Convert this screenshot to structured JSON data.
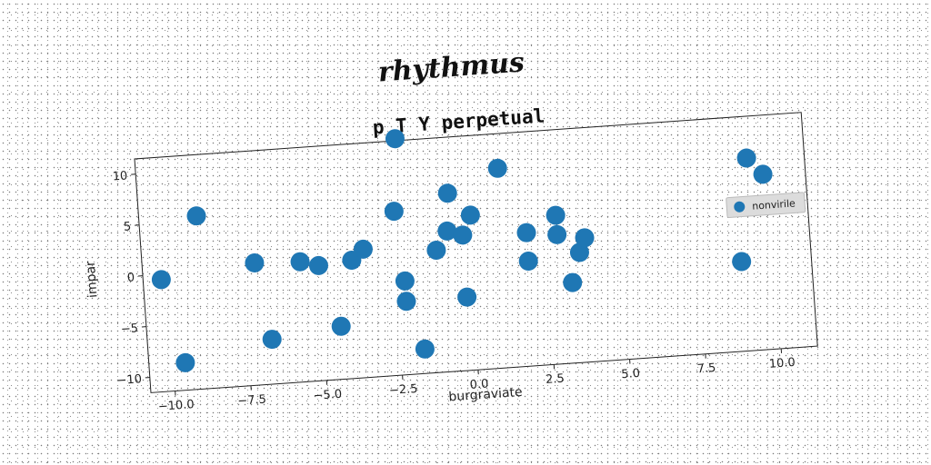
{
  "chart_data": {
    "type": "scatter",
    "suptitle": "rhythmus",
    "title": "p T Y perpetual",
    "xlabel": "burgraviate",
    "ylabel": "impar",
    "xlim": [
      -10.8,
      11.2
    ],
    "ylim": [
      -11.5,
      11.5
    ],
    "xticks": [
      -10.0,
      -7.5,
      -5.0,
      -2.5,
      0.0,
      2.5,
      5.0,
      7.5,
      10.0
    ],
    "yticks": [
      -10,
      -5,
      0,
      5,
      10
    ],
    "grid": false,
    "legend_position": "right",
    "series": [
      {
        "name": "nonvirile",
        "color": "#1f77b4",
        "x": [
          -10.2,
          -9.6,
          -8.9,
          -7.1,
          -6.7,
          -5.6,
          -5.0,
          -4.4,
          -3.9,
          -3.5,
          -2.4,
          -2.2,
          -2.2,
          -2.2,
          -1.7,
          -1.1,
          -0.7,
          -0.6,
          -0.2,
          -0.2,
          0.1,
          1.1,
          1.9,
          1.9,
          2.9,
          2.9,
          3.3,
          3.6,
          3.8,
          8.9,
          9.3,
          9.8
        ],
        "y": [
          -0.5,
          -8.8,
          5.5,
          0.5,
          -7.1,
          0.3,
          -0.2,
          -6.3,
          0.1,
          1.1,
          4.6,
          -2.3,
          -4.3,
          11.7,
          -9.1,
          0.5,
          2.3,
          6.0,
          1.8,
          -4.3,
          3.7,
          8.1,
          1.6,
          -1.2,
          3.1,
          1.2,
          -3.6,
          -0.7,
          0.7,
          -2.7,
          7.4,
          5.7
        ]
      }
    ]
  }
}
